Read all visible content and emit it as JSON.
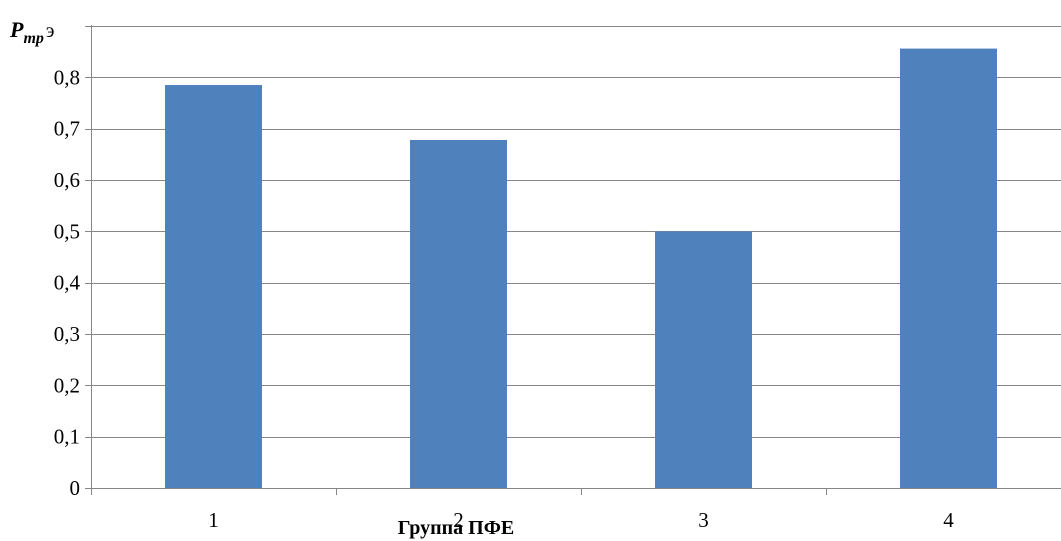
{
  "chart_data": {
    "type": "bar",
    "categories": [
      "1",
      "2",
      "3",
      "4"
    ],
    "values": [
      0.785,
      0.678,
      0.5,
      0.856
    ],
    "title": "",
    "xlabel": "Группа ПФЕ",
    "ylabel": {
      "main": "P",
      "sub": "тр",
      "tail": "э"
    },
    "ylim": [
      0,
      0.9
    ],
    "yticks": [
      0,
      0.1,
      0.2,
      0.3,
      0.4,
      0.5,
      0.6,
      0.7,
      0.8
    ],
    "ytick_labels": [
      "0",
      "0,1",
      "0,2",
      "0,3",
      "0,4",
      "0,5",
      "0,6",
      "0,7",
      "0,8"
    ],
    "grid": true,
    "legend": "none",
    "colors": {
      "bar": "#4F81BD",
      "grid": "#868686",
      "axis": "#868686"
    }
  }
}
